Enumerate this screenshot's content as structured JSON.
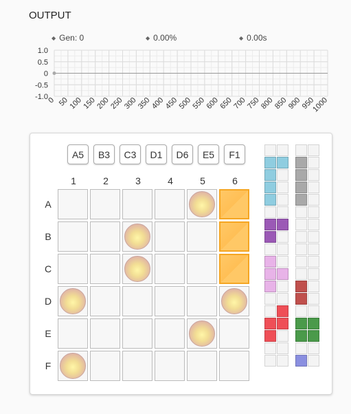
{
  "header": {
    "title": "OUTPUT"
  },
  "stats": {
    "generation": "Gen: 0",
    "fitness": "0.00%",
    "time": "0.00s"
  },
  "chart_data": {
    "type": "line",
    "title": "",
    "xlabel": "",
    "ylabel": "",
    "xlim": [
      0,
      1000
    ],
    "ylim": [
      -1.0,
      1.0
    ],
    "x_ticks": [
      0,
      50,
      100,
      150,
      200,
      250,
      300,
      350,
      400,
      450,
      500,
      550,
      600,
      650,
      700,
      750,
      800,
      850,
      900,
      950,
      1000
    ],
    "y_ticks": [
      "1.0",
      "0.5",
      "0",
      "-0.5",
      "-1.0"
    ],
    "grid": true,
    "series": [
      {
        "x": [
          0
        ],
        "y": [
          0
        ]
      }
    ]
  },
  "board": {
    "chips": [
      "A5",
      "B3",
      "C3",
      "D1",
      "D6",
      "E5",
      "F1"
    ],
    "columns": [
      "1",
      "2",
      "3",
      "4",
      "5",
      "6"
    ],
    "rows": [
      "A",
      "B",
      "C",
      "D",
      "E",
      "F"
    ],
    "pieces": [
      [
        0,
        4
      ],
      [
        1,
        2
      ],
      [
        2,
        2
      ],
      [
        3,
        0
      ],
      [
        3,
        5
      ],
      [
        4,
        4
      ],
      [
        5,
        0
      ]
    ],
    "highlighted": [
      [
        0,
        5
      ],
      [
        1,
        5
      ],
      [
        2,
        5
      ]
    ]
  },
  "legend_strips": {
    "rows": 18,
    "left": [
      {
        "color": "#8fcde0",
        "cells": [
          [
            1,
            0
          ],
          [
            1,
            1
          ],
          [
            2,
            0
          ],
          [
            3,
            0
          ],
          [
            4,
            0
          ]
        ]
      },
      {
        "color": "#9b59b6",
        "cells": [
          [
            6,
            0
          ],
          [
            6,
            1
          ],
          [
            7,
            0
          ]
        ]
      },
      {
        "color": "#e8b3e8",
        "cells": [
          [
            9,
            0
          ],
          [
            10,
            0
          ],
          [
            10,
            1
          ],
          [
            11,
            0
          ]
        ]
      },
      {
        "color": "#ef4f57",
        "cells": [
          [
            13,
            1
          ],
          [
            14,
            0
          ],
          [
            14,
            1
          ],
          [
            15,
            0
          ]
        ]
      }
    ],
    "right": [
      {
        "color": "#a9a9a9",
        "cells": [
          [
            1,
            0
          ],
          [
            2,
            0
          ],
          [
            3,
            0
          ],
          [
            4,
            0
          ]
        ]
      },
      {
        "color": "#c0504d",
        "cells": [
          [
            11,
            0
          ],
          [
            12,
            0
          ]
        ]
      },
      {
        "color": "#4a9a4a",
        "cells": [
          [
            14,
            0
          ],
          [
            14,
            1
          ],
          [
            15,
            0
          ],
          [
            15,
            1
          ]
        ]
      },
      {
        "color": "#8a8fe0",
        "cells": [
          [
            17,
            0
          ]
        ]
      }
    ]
  }
}
